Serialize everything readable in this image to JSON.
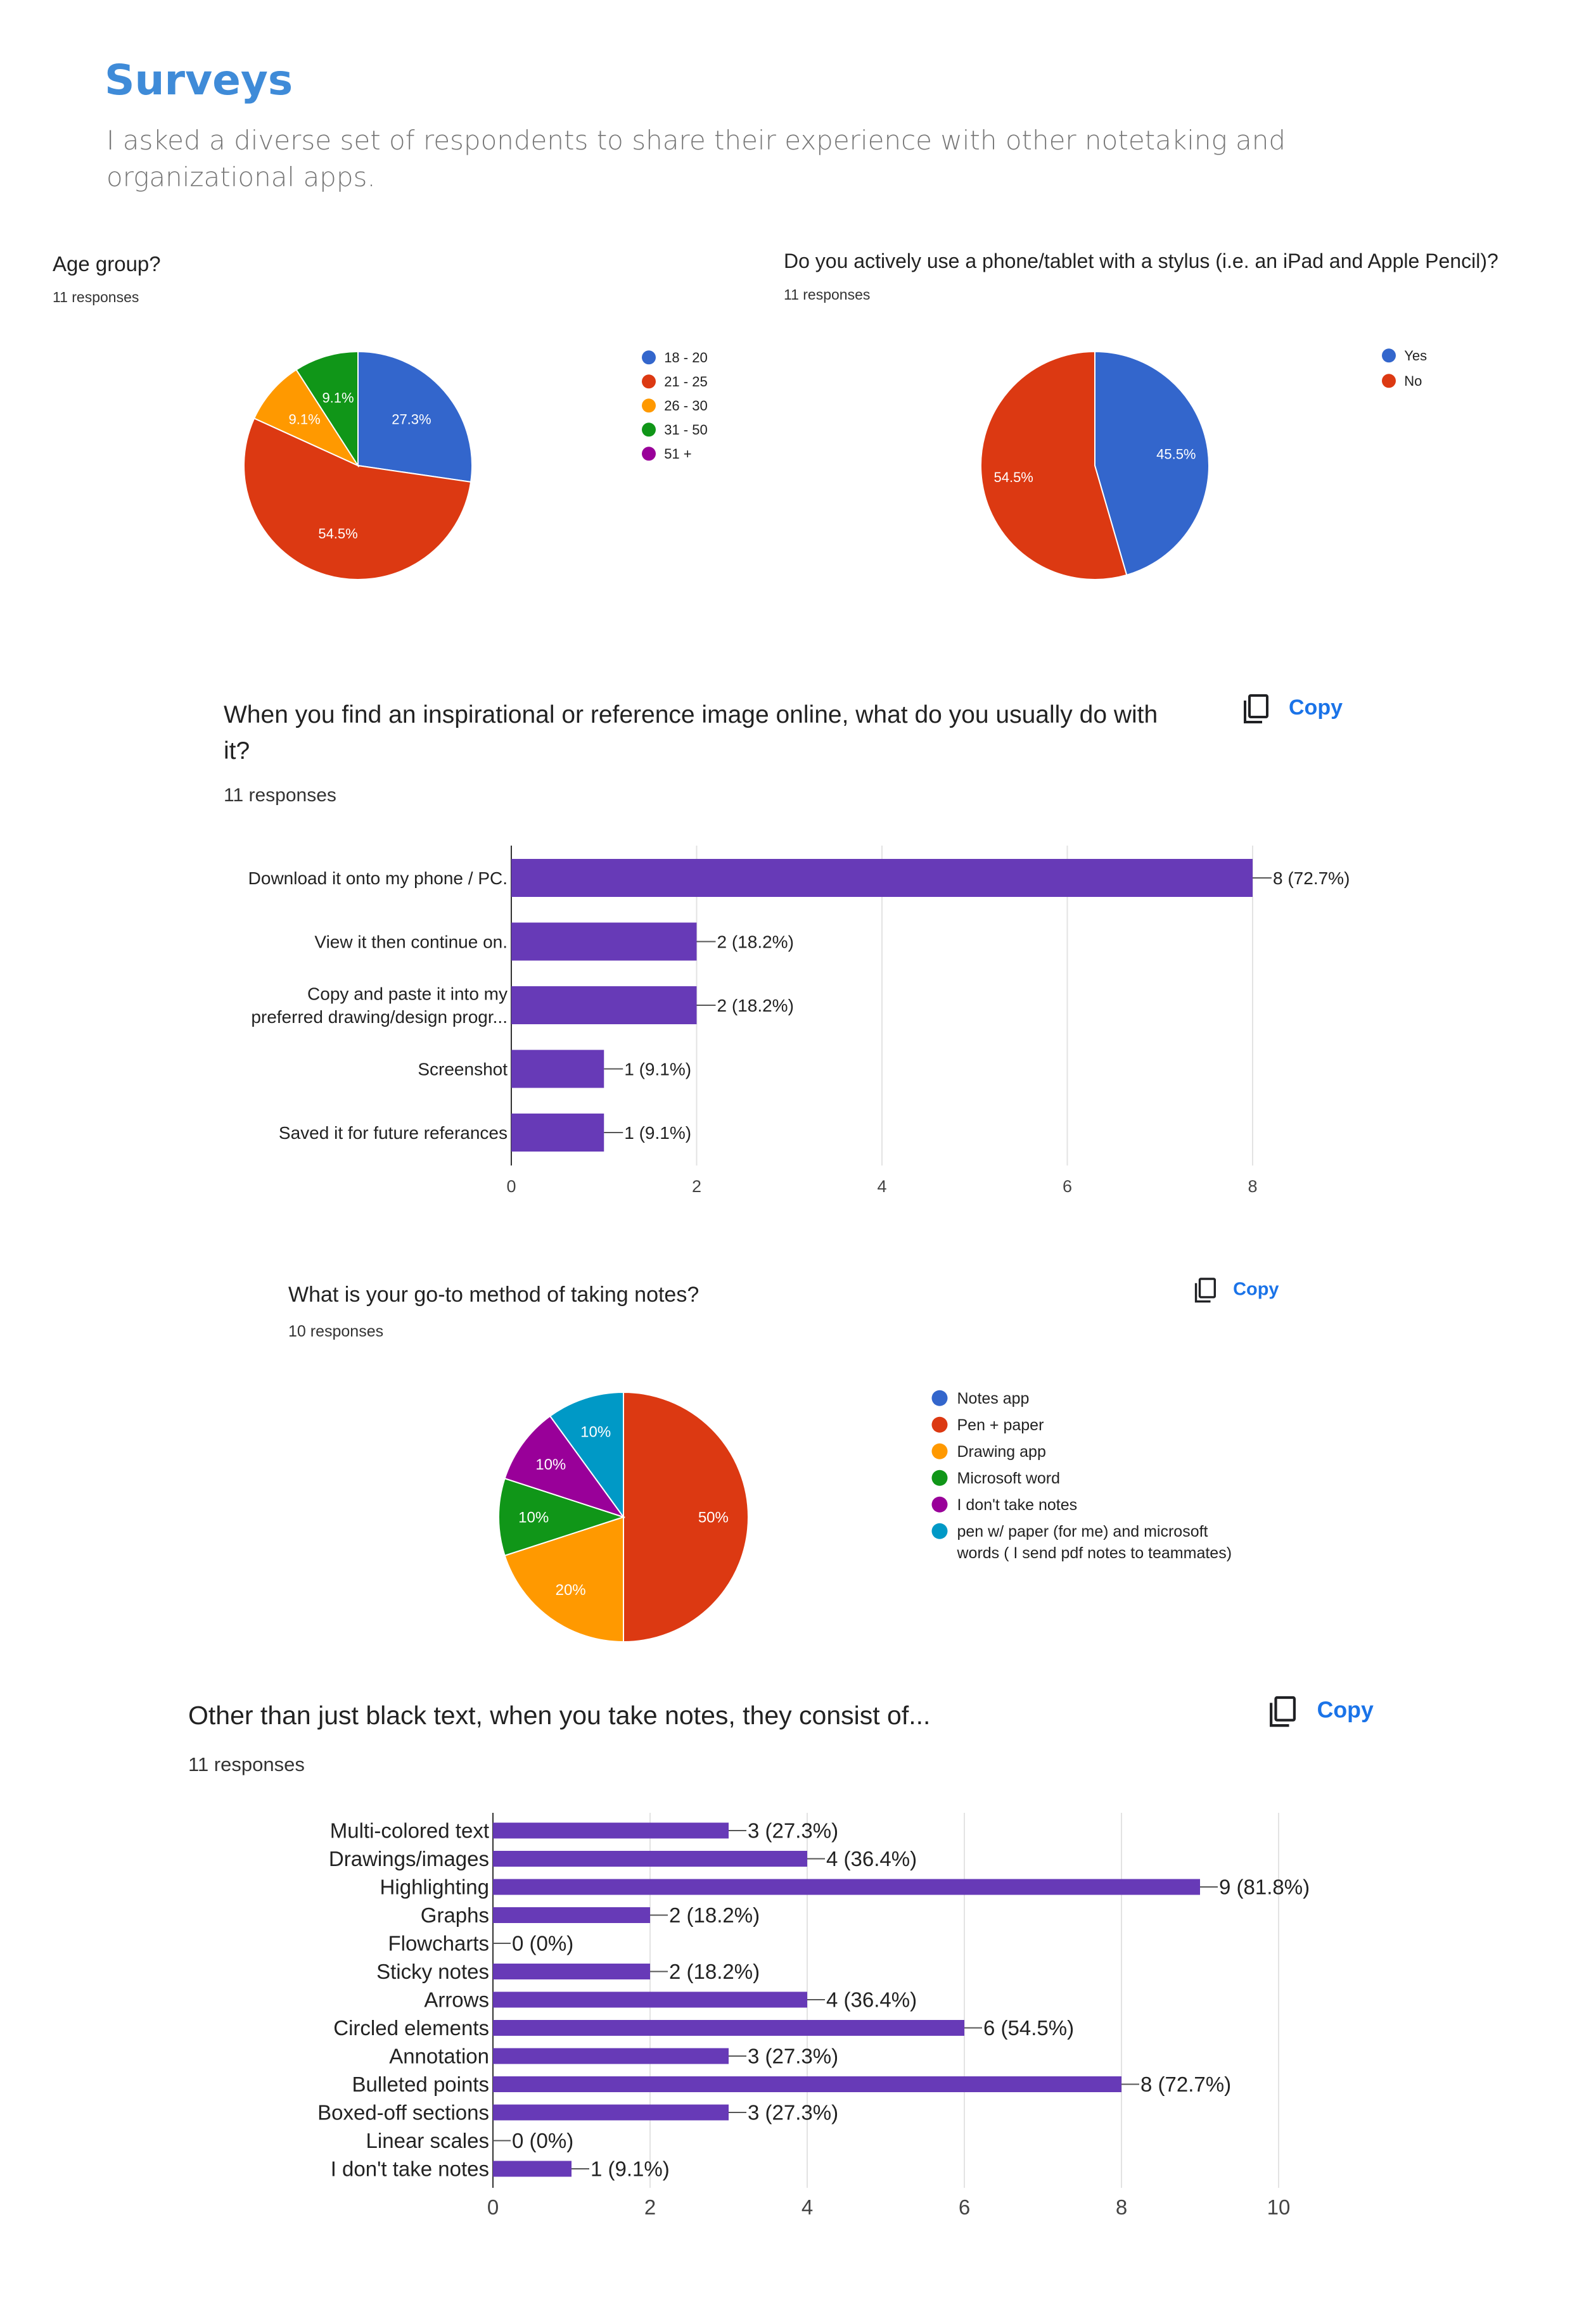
{
  "page": {
    "title": "Surveys",
    "subtitle": "I asked a diverse set of respondents to share their experience with other notetaking and organizational apps."
  },
  "copy_label": "Copy",
  "chart_data": [
    {
      "type": "pie",
      "title": "Age group?",
      "responses": "11 responses",
      "legend": [
        "18 - 20",
        "21 - 25",
        "26 - 30",
        "31 - 50",
        "51 +"
      ],
      "colors": [
        "#3366cc",
        "#dc3912",
        "#ff9900",
        "#109618",
        "#990099"
      ],
      "values": [
        27.3,
        54.5,
        9.1,
        9.1,
        0
      ],
      "labels": [
        "27.3%",
        "54.5%",
        "9.1%",
        "9.1%",
        ""
      ],
      "legend_placement": "right"
    },
    {
      "type": "pie",
      "title": "Do you actively use a phone/tablet with a stylus (i.e. an iPad and Apple Pencil)?",
      "responses": "11 responses",
      "legend": [
        "Yes",
        "No"
      ],
      "colors": [
        "#3366cc",
        "#dc3912"
      ],
      "values": [
        45.5,
        54.5
      ],
      "labels": [
        "45.5%",
        "54.5%"
      ],
      "legend_placement": "right"
    },
    {
      "type": "bar",
      "orientation": "horizontal",
      "title_lines": [
        "When you find an inspirational or reference image online, what do you usually do with",
        "it?"
      ],
      "responses": "11 responses",
      "categories": [
        [
          "Download it onto my phone / PC."
        ],
        [
          "View it then continue on."
        ],
        [
          "Copy and paste it into my",
          "preferred drawing/design progr..."
        ],
        [
          "Screenshot"
        ],
        [
          "Saved it for future referances"
        ]
      ],
      "values": [
        8,
        2,
        2,
        1,
        1
      ],
      "value_labels": [
        "8 (72.7%)",
        "2 (18.2%)",
        "2 (18.2%)",
        "1 (9.1%)",
        "1 (9.1%)"
      ],
      "xlim": [
        0,
        8
      ],
      "xticks": [
        0,
        2,
        4,
        6,
        8
      ],
      "color": "#673ab7",
      "grid": true
    },
    {
      "type": "pie",
      "title": "What is your go-to method of taking notes?",
      "responses": "10 responses",
      "legend": [
        "Notes app",
        "Pen + paper",
        "Drawing app",
        "Microsoft word",
        "I don't take notes",
        "pen w/ paper (for me) and microsoft words ( I send pdf notes to teammates)"
      ],
      "legend_lines": [
        [
          "Notes app"
        ],
        [
          "Pen + paper"
        ],
        [
          "Drawing app"
        ],
        [
          "Microsoft word"
        ],
        [
          "I don't take notes"
        ],
        [
          "pen w/ paper (for me) and microsoft",
          "words ( I send pdf notes to teammates)"
        ]
      ],
      "colors": [
        "#3366cc",
        "#dc3912",
        "#ff9900",
        "#109618",
        "#990099",
        "#0099c6"
      ],
      "values": [
        0,
        50,
        20,
        10,
        10,
        10
      ],
      "labels": [
        "",
        "50%",
        "20%",
        "10%",
        "10%",
        "10%"
      ],
      "legend_placement": "right"
    },
    {
      "type": "bar",
      "orientation": "horizontal",
      "title_lines": [
        "Other than just black text, when you take notes, they consist of..."
      ],
      "responses": "11 responses",
      "categories": [
        [
          "Multi-colored text"
        ],
        [
          "Drawings/images"
        ],
        [
          "Highlighting"
        ],
        [
          "Graphs"
        ],
        [
          "Flowcharts"
        ],
        [
          "Sticky notes"
        ],
        [
          "Arrows"
        ],
        [
          "Circled elements"
        ],
        [
          "Annotation"
        ],
        [
          "Bulleted points"
        ],
        [
          "Boxed-off sections"
        ],
        [
          "Linear scales"
        ],
        [
          "I don't take notes"
        ]
      ],
      "values": [
        3,
        4,
        9,
        2,
        0,
        2,
        4,
        6,
        3,
        8,
        3,
        0,
        1
      ],
      "value_labels": [
        "3 (27.3%)",
        "4 (36.4%)",
        "9 (81.8%)",
        "2 (18.2%)",
        "0 (0%)",
        "2 (18.2%)",
        "4 (36.4%)",
        "6 (54.5%)",
        "3 (27.3%)",
        "8 (72.7%)",
        "3 (27.3%)",
        "0 (0%)",
        "1 (9.1%)"
      ],
      "xlim": [
        0,
        10
      ],
      "xticks": [
        0,
        2,
        4,
        6,
        8,
        10
      ],
      "color": "#673ab7",
      "grid": true
    }
  ]
}
